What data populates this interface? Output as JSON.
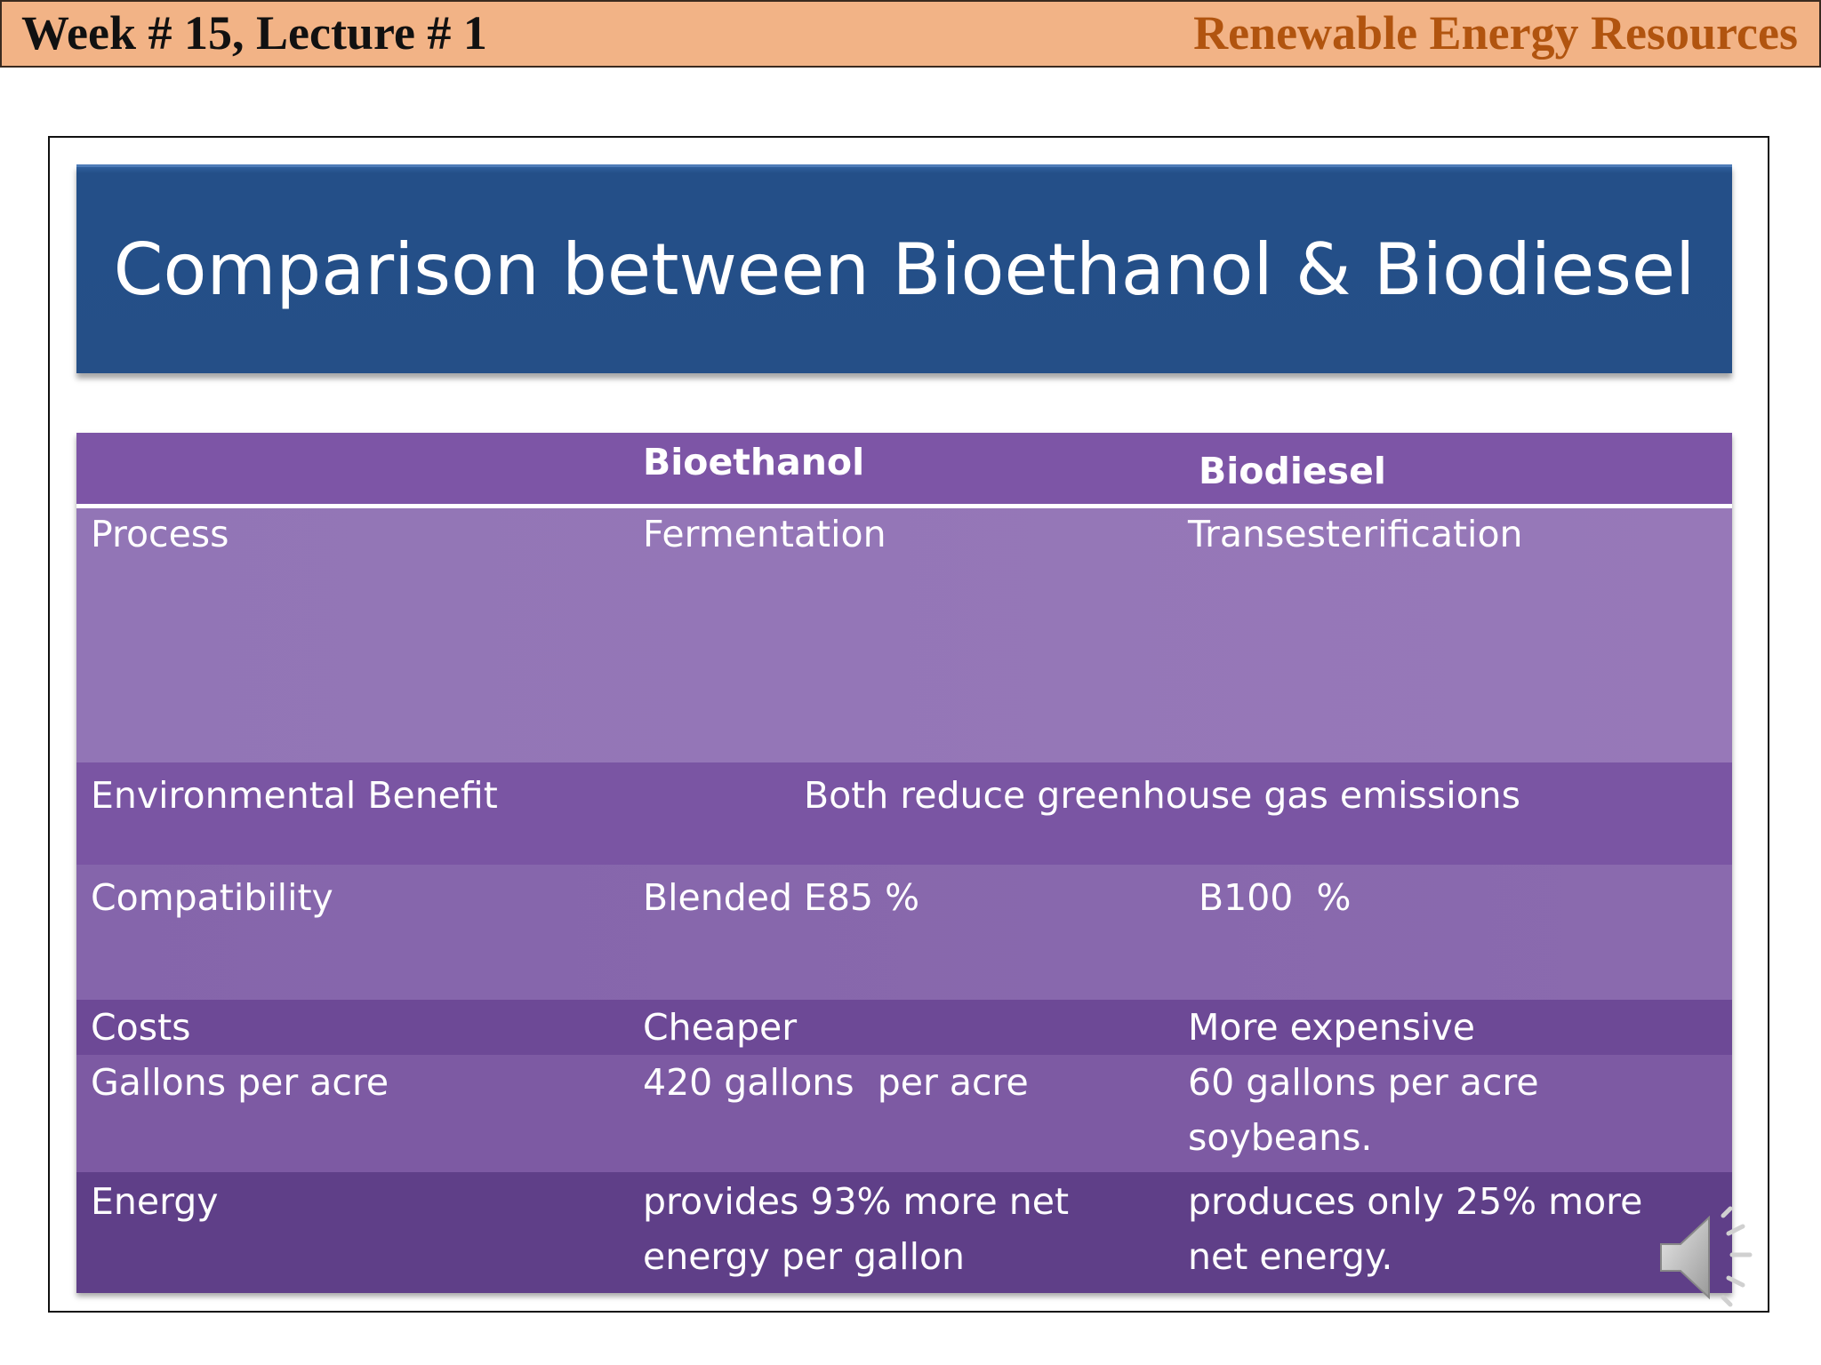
{
  "header": {
    "left": "Week # 15, Lecture # 1",
    "right": "Renewable Energy Resources"
  },
  "slide": {
    "title": "Comparison between Bioethanol & Biodiesel",
    "table": {
      "columns": [
        "",
        "Bioethanol",
        "Biodiesel"
      ],
      "rows": [
        {
          "label": "Process",
          "bioethanol": "Fermentation",
          "biodiesel": "Transesterification"
        },
        {
          "label": "Environmental Benefit",
          "both": "Both reduce greenhouse gas emissions"
        },
        {
          "label": "Compatibility",
          "bioethanol": "Blended E85 %",
          "biodiesel": "B100  %"
        },
        {
          "label": "Costs",
          "bioethanol": "Cheaper",
          "biodiesel": "More expensive"
        },
        {
          "label": "Gallons per acre",
          "bioethanol": "420 gallons  per acre",
          "biodiesel_lines": [
            "60 gallons per acre",
            "soybeans."
          ]
        },
        {
          "label": "Energy",
          "bioethanol_lines": [
            "provides 93% more net",
            "energy per gallon"
          ],
          "biodiesel_lines": [
            "produces only 25% more",
            "net energy."
          ]
        }
      ]
    },
    "icons": {
      "audio": "speaker-icon"
    }
  }
}
